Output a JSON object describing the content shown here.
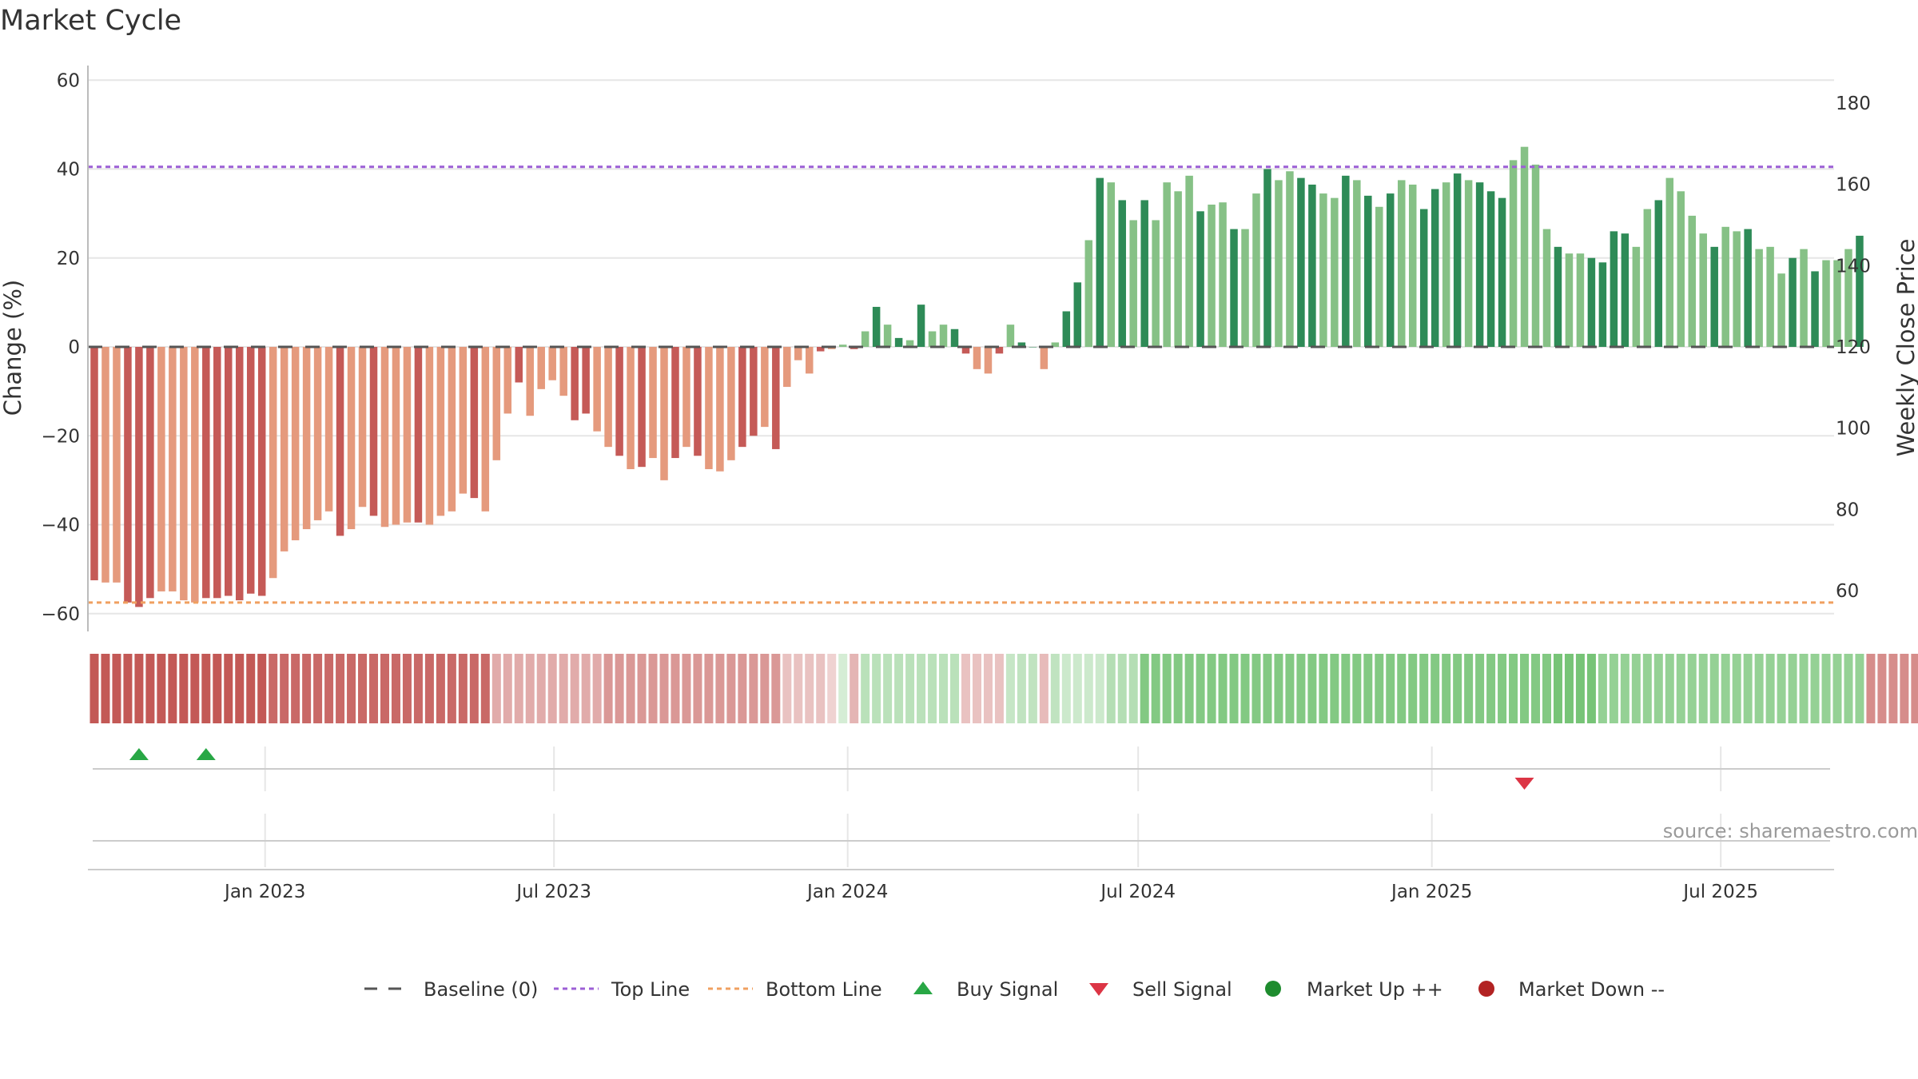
{
  "chart_data": {
    "type": "bar",
    "title": "Market Cycle",
    "ylabel": "Change (%)",
    "y2label": "Weekly Close Price",
    "ylim": [
      -64,
      64
    ],
    "y_ticks": [
      60,
      40,
      20,
      0,
      -20,
      -40,
      -60
    ],
    "y_tick_labels": [
      "60",
      "40",
      "20",
      "0",
      "−20",
      "−40",
      "−60"
    ],
    "y2_ticks": [
      180,
      160,
      140,
      120,
      100,
      80,
      60
    ],
    "y2_tick_labels": [
      "180",
      "160",
      "140",
      "120",
      "100",
      "80",
      "60"
    ],
    "y2lim": [
      50,
      190
    ],
    "x_ticks": [
      {
        "label": "Jan 2023",
        "date": "2023-01-01"
      },
      {
        "label": "Jul 2023",
        "date": "2023-07-01"
      },
      {
        "label": "Jan 2024",
        "date": "2024-01-01"
      },
      {
        "label": "Jul 2024",
        "date": "2024-07-01"
      },
      {
        "label": "Jan 2025",
        "date": "2025-01-01"
      },
      {
        "label": "Jul 2025",
        "date": "2025-07-01"
      }
    ],
    "xlim": [
      "2022-09-12",
      "2025-09-10"
    ],
    "first_week": "2022-09-16",
    "top_line": 40.5,
    "bottom_line": -57.5,
    "baseline": 0,
    "changes": [
      -52.5,
      -53,
      -53,
      -57.5,
      -58.5,
      -56.5,
      -55,
      -55,
      -57,
      -57.5,
      -56.5,
      -56.5,
      -56,
      -57,
      -55.5,
      -56,
      -52,
      -46,
      -43.5,
      -41,
      -39,
      -37,
      -42.5,
      -41,
      -36,
      -38,
      -40.5,
      -40,
      -39.5,
      -39.5,
      -40,
      -38,
      -37,
      -33,
      -34,
      -37,
      -25.5,
      -15,
      -8,
      -15.5,
      -9.5,
      -7.5,
      -11,
      -16.5,
      -15,
      -19,
      -22.5,
      -24.5,
      -27.5,
      -27,
      -25,
      -30,
      -25,
      -22.5,
      -24.5,
      -27.5,
      -28,
      -25.5,
      -22.5,
      -20,
      -18,
      -23,
      -9,
      -3,
      -6,
      -1,
      -0.5,
      0.5,
      -0.5,
      3.5,
      9,
      5,
      2,
      1.5,
      9.5,
      3.5,
      5,
      4,
      -1.5,
      -5,
      -6,
      -1.5,
      5,
      1,
      0,
      -5,
      1,
      8,
      14.5,
      24,
      38,
      37,
      33,
      28.5,
      33,
      28.5,
      37,
      35,
      38.5,
      30.5,
      32,
      32.5,
      26.5,
      26.5,
      34.5,
      40,
      37.5,
      39.5,
      38,
      36.5,
      34.5,
      33.5,
      38.5,
      37.5,
      34,
      31.5,
      34.5,
      37.5,
      36.5,
      31,
      35.5,
      37,
      39,
      37.5,
      37,
      35,
      33.5,
      42,
      45,
      41,
      26.5,
      22.5,
      21,
      21,
      20,
      19,
      26,
      25.5,
      22.5,
      31,
      33,
      38,
      35,
      29.5,
      25.5,
      22.5,
      27,
      26,
      26.5,
      22,
      22.5,
      16.5,
      20,
      22,
      17,
      19.5,
      19.5,
      22,
      25
    ],
    "shade_codes": "dlldddllllddddddlllllldlldllldlllldllldllllddlldldlldldlllddldllldlldldldldllddlldlddllddldldldlllldlldlldllddlldldldllddldldddlllldllddddlldlllldlldllldldllldld",
    "state_levels": [
      1,
      1,
      1,
      1,
      1,
      1,
      1,
      1,
      1,
      1,
      1,
      1,
      1,
      1,
      1,
      1,
      0.87,
      0.87,
      0.87,
      0.87,
      0.87,
      0.87,
      0.87,
      0.87,
      0.87,
      0.87,
      0.87,
      0.87,
      0.87,
      0.87,
      0.87,
      0.87,
      0.87,
      0.87,
      0.87,
      0.87,
      0.37,
      0.37,
      0.37,
      0.37,
      0.37,
      0.37,
      0.37,
      0.37,
      0.37,
      0.37,
      0.52,
      0.52,
      0.52,
      0.52,
      0.52,
      0.52,
      0.52,
      0.52,
      0.52,
      0.52,
      0.52,
      0.52,
      0.52,
      0.52,
      0.52,
      0.52,
      0.2,
      0.2,
      0.2,
      0.2,
      0.08,
      0.08,
      0.3,
      0.3,
      0.3,
      0.3,
      0.3,
      0.3,
      0.3,
      0.3,
      0.3,
      0.3,
      0.2,
      0.2,
      0.2,
      0.2,
      0.2,
      0.25,
      0.25,
      0.25,
      0.25,
      0.15,
      0.15,
      0.15,
      0.15,
      0.35,
      0.35,
      0.35,
      0.75,
      0.75,
      0.75,
      0.75,
      0.75,
      0.75,
      0.75,
      0.75,
      0.75,
      0.75,
      0.75,
      0.75,
      0.75,
      0.75,
      0.75,
      0.75,
      0.75,
      0.75,
      0.75,
      0.75,
      0.75,
      0.75,
      0.75,
      0.75,
      0.75,
      0.75,
      0.75,
      0.75,
      0.75,
      0.75,
      0.75,
      0.75,
      0.75,
      0.75,
      0.75,
      0.75,
      0.75,
      0.85,
      0.85,
      0.85,
      0.85,
      0.6,
      0.6,
      0.6,
      0.6,
      0.6,
      0.6,
      0.6,
      0.6,
      0.6,
      0.6,
      0.6,
      0.6,
      0.6,
      0.6,
      0.6,
      0.6,
      0.6,
      0.6,
      0.6,
      0.6,
      0.6,
      0.6,
      0.6,
      0.6,
      0.6,
      0.6,
      0.6,
      0.6,
      0.6,
      0.6,
      0.6,
      0.6,
      0.6,
      0.6,
      0.6,
      0.6,
      0.6,
      0.6,
      0.6,
      0.6,
      0.6,
      0.6,
      0.48,
      0.48,
      0.48,
      0.48,
      0.48,
      0.48
    ],
    "buy_signals": [
      "2022-10-14",
      "2022-11-25"
    ],
    "sell_signals": [
      "2025-02-28"
    ],
    "legend": [
      {
        "key": "baseline",
        "label": "Baseline (0)"
      },
      {
        "key": "top",
        "label": "Top Line"
      },
      {
        "key": "bottom",
        "label": "Bottom Line"
      },
      {
        "key": "buy",
        "label": "Buy Signal"
      },
      {
        "key": "sell",
        "label": "Sell Signal"
      },
      {
        "key": "up",
        "label": "Market Up ++"
      },
      {
        "key": "down",
        "label": "Market Down --"
      }
    ],
    "legend_position": "bottom-center",
    "source": "source: sharemaestro.com",
    "grid": true
  },
  "colors": {
    "red_dark": "#c55a57",
    "red_light": "#e59a7d",
    "green_dark": "#2e8b57",
    "green_light": "#86c186",
    "state_red": "#c0504d",
    "state_green": "#5cb85c",
    "top_line": "#9c5fd6",
    "bottom_line": "#f0a060",
    "buy": "#28a745",
    "sell": "#dc3545",
    "market_up": "#1e8c2e",
    "market_down": "#b22222",
    "grid": "#e6e6e6",
    "baseline": "#555555"
  }
}
